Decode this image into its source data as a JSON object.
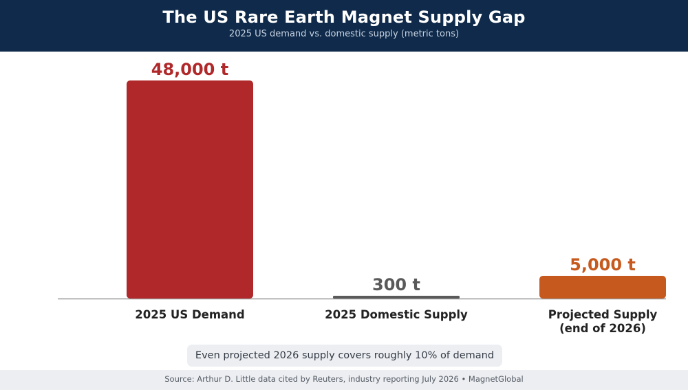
{
  "header": {
    "title": "The US Rare Earth Magnet Supply Gap",
    "subtitle": "2025 US demand vs. domestic supply (metric tons)"
  },
  "chart_data": {
    "type": "bar",
    "categories": [
      "2025 US Demand",
      "2025 Domestic Supply",
      "Projected Supply (end of 2026)"
    ],
    "category_lines": [
      [
        "2025 US Demand"
      ],
      [
        "2025 Domestic Supply"
      ],
      [
        "Projected Supply",
        "(end of 2026)"
      ]
    ],
    "values": [
      48000,
      300,
      5000
    ],
    "data_labels": [
      "48,000 t",
      "300 t",
      "5,000 t"
    ],
    "colors": [
      "#b0282a",
      "#5a5a5a",
      "#c65a1e"
    ],
    "label_colors": [
      "#b0282a",
      "#5a5a5a",
      "#c65a1e"
    ],
    "ylim": [
      0,
      48000
    ],
    "unit": "metric tons",
    "grid": false
  },
  "callout": "Even projected 2026 supply covers roughly 10% of demand",
  "footer": "Source: Arthur D. Little data cited by Reuters, industry reporting July 2026 • MagnetGlobal"
}
